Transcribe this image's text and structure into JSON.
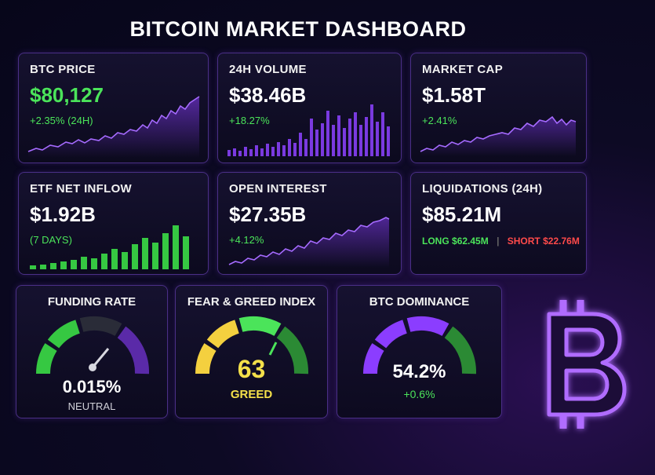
{
  "dashboard": {
    "title": "BITCOIN MARKET DASHBOARD"
  },
  "cards": {
    "btc_price": {
      "label": "BTC PRICE",
      "value": "$80,127",
      "change": "+2.35% (24H)"
    },
    "volume": {
      "label": "24H VOLUME",
      "value": "$38.46B",
      "change": "+18.27%"
    },
    "market_cap": {
      "label": "MARKET CAP",
      "value": "$1.58T",
      "change": "+2.41%"
    },
    "etf": {
      "label": "ETF NET INFLOW",
      "value": "$1.92B",
      "change": "(7 DAYS)"
    },
    "open_interest": {
      "label": "OPEN INTEREST",
      "value": "$27.35B",
      "change": "+4.12%"
    },
    "liquidations": {
      "label": "LIQUIDATIONS (24H)",
      "value": "$85.21M",
      "long_label": "LONG",
      "long_value": "$62.45M",
      "separator": "|",
      "short_label": "SHORT",
      "short_value": "$22.76M"
    }
  },
  "gauges": {
    "funding": {
      "label": "FUNDING RATE",
      "value": "0.015%",
      "status": "NEUTRAL"
    },
    "fear_greed": {
      "label": "FEAR & GREED INDEX",
      "value": "63",
      "status": "GREED",
      "level": 0.63
    },
    "dominance": {
      "label": "BTC DOMINANCE",
      "value": "54.2%",
      "change": "+0.6%",
      "level": 0.542
    }
  },
  "colors": {
    "accent_purple": "#8b3dff",
    "positive": "#4be45a",
    "negative": "#ff4a4a",
    "fear_yellow": "#f4d03f"
  },
  "icons": {
    "logo": "bitcoin-icon"
  }
}
